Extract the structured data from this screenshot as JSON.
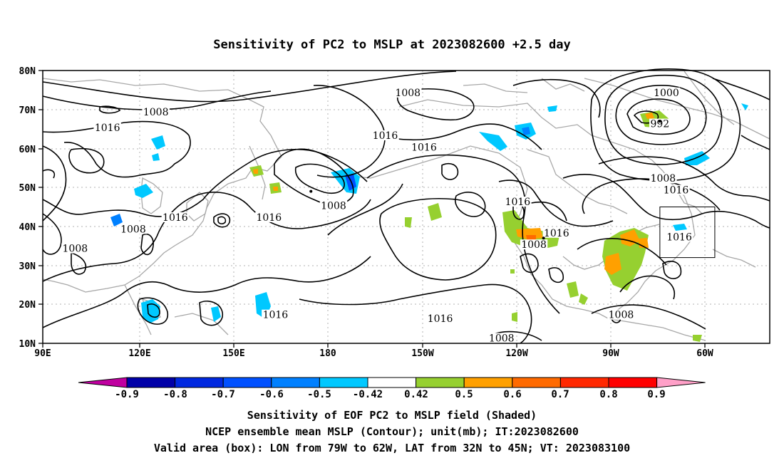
{
  "chart_data": {
    "type": "heatmap",
    "title": "Sensitivity of PC2 to MSLP at 2023082600 +2.5 day",
    "x_ticks": [
      "90E",
      "120E",
      "150E",
      "180",
      "150W",
      "120W",
      "90W",
      "60W"
    ],
    "y_ticks": [
      "80N",
      "70N",
      "60N",
      "50N",
      "40N",
      "30N",
      "20N",
      "10N"
    ],
    "xlim": [
      90,
      315
    ],
    "ylim": [
      10,
      80
    ],
    "grid": true,
    "colorbar": {
      "labels": [
        "-0.9",
        "-0.8",
        "-0.7",
        "-0.6",
        "-0.5",
        "-0.42",
        "0.42",
        "0.5",
        "0.6",
        "0.7",
        "0.8",
        "0.9"
      ],
      "colors": [
        "#c000a0",
        "#0000a8",
        "#0028e0",
        "#0050ff",
        "#0080ff",
        "#00c8ff",
        "#ffffff",
        "#96d030",
        "#ffa000",
        "#ff6a00",
        "#ff2800",
        "#ff0000",
        "#ffa0c8"
      ]
    },
    "contour_labels": [
      {
        "text": "1008",
        "lon": 125,
        "lat": 69
      },
      {
        "text": "1016",
        "lon": 110,
        "lat": 65
      },
      {
        "text": "1016",
        "lon": 131,
        "lat": 42
      },
      {
        "text": "1008",
        "lon": 118,
        "lat": 39
      },
      {
        "text": "1008",
        "lon": 100,
        "lat": 34
      },
      {
        "text": "1016",
        "lon": 160,
        "lat": 42
      },
      {
        "text": "1008",
        "lon": 180,
        "lat": 45
      },
      {
        "text": "1016",
        "lon": 162,
        "lat": 17
      },
      {
        "text": "1008",
        "lon": 203,
        "lat": 74
      },
      {
        "text": "1016",
        "lon": 196,
        "lat": 63
      },
      {
        "text": "1016",
        "lon": 208,
        "lat": 60
      },
      {
        "text": "1016",
        "lon": 237,
        "lat": 46
      },
      {
        "text": "1016",
        "lon": 249,
        "lat": 38
      },
      {
        "text": "1008",
        "lon": 242,
        "lat": 35
      },
      {
        "text": "1016",
        "lon": 213,
        "lat": 16
      },
      {
        "text": "1008",
        "lon": 232,
        "lat": 11
      },
      {
        "text": "1008",
        "lon": 269,
        "lat": 17
      },
      {
        "text": "1000",
        "lon": 283,
        "lat": 74
      },
      {
        "text": "992",
        "lon": 281,
        "lat": 66
      },
      {
        "text": "1008",
        "lon": 282,
        "lat": 52
      },
      {
        "text": "1016",
        "lon": 286,
        "lat": 49
      },
      {
        "text": "1016",
        "lon": 287,
        "lat": 37
      }
    ],
    "highs_lows_centers": [
      {
        "lon": 281,
        "lat": 67
      },
      {
        "lon": 173,
        "lat": 49
      },
      {
        "lon": 245,
        "lat": 37
      }
    ],
    "valid_box": {
      "lon_min": 281,
      "lon_max": 298,
      "lat_min": 32,
      "lat_max": 45
    }
  },
  "captions": {
    "line1": "Sensitivity of EOF PC2 to MSLP field (Shaded)",
    "line2": "NCEP ensemble mean MSLP (Contour); unit(mb); IT:2023082600",
    "line3": "Valid area (box): LON from 79W to 62W, LAT from 32N to 45N; VT: 2023083100"
  }
}
